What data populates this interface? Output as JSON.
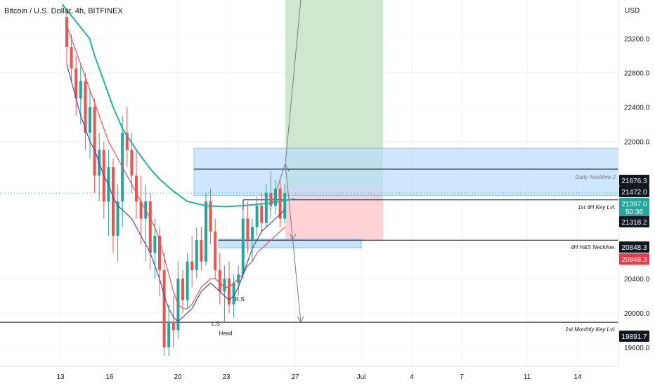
{
  "header": {
    "title": "Bitcoin / U.S. Dollar, 4h, BITFINEX"
  },
  "chart_data": {
    "type": "candlestick",
    "title": "Bitcoin / U.S. Dollar, 4h, BITFINEX",
    "currency": "USD",
    "ylim": [
      19440,
      23550
    ],
    "y_ticks": [
      "23200.0",
      "22800.0",
      "22400.0",
      "22000.0",
      "20400.0",
      "20000.0",
      "19600.0"
    ],
    "y_tick_values": [
      23200,
      22800,
      22400,
      22000,
      20400,
      20000,
      19600
    ],
    "x_ticks": [
      "13",
      "16",
      "20",
      "23",
      "27",
      "Jul",
      "4",
      "7",
      "11",
      "14"
    ],
    "last_price": 21397.0,
    "countdown": "50:36",
    "price_badges": [
      {
        "value": "21676.3",
        "color": "#131722",
        "price": 21676.3
      },
      {
        "value": "21472.0",
        "color": "#131722",
        "price": 21472.0
      },
      {
        "value": "21318.2",
        "color": "#131722",
        "price": 21318.2
      },
      {
        "value": "20848.3",
        "color": "#131722",
        "price": 20848.3
      },
      {
        "value": "20848.3",
        "color": "#f23645",
        "price": 20848.3
      },
      {
        "value": "19891.7",
        "color": "#131722",
        "price": 19891.7
      }
    ],
    "levels": [
      {
        "label": "Daily Neckline 2",
        "price": 21676.3
      },
      {
        "label": "1st 4H Key Lvl.",
        "price": 21318.2
      },
      {
        "label": "4H H&S Neckline.",
        "price": 20848.3
      },
      {
        "label": "1st Monthly Key Lvl.",
        "price": 19891.7
      }
    ],
    "pattern_labels": [
      "L.S",
      "Head",
      "R.S"
    ],
    "colors": {
      "up": "#26a69a",
      "down": "#ef5350",
      "ema_fast": "#3d4db7",
      "ema_mid": "#ef5350",
      "ema_slow": "#20b2aa",
      "target_zone": "#c8e6c9",
      "stop_zone": "#ffcdd2",
      "supply_zone": "#bbdefb"
    },
    "candles": [
      [
        23450,
        23550,
        22900,
        23100
      ],
      [
        23100,
        23250,
        22700,
        22850
      ],
      [
        22850,
        23000,
        22300,
        22500
      ],
      [
        22500,
        22900,
        22200,
        22700
      ],
      [
        22700,
        22800,
        21900,
        22100
      ],
      [
        22100,
        22600,
        21800,
        22400
      ],
      [
        22400,
        22500,
        21400,
        21600
      ],
      [
        21600,
        22100,
        21300,
        21900
      ],
      [
        21900,
        22000,
        21100,
        21300
      ],
      [
        21300,
        21900,
        20900,
        21700
      ],
      [
        21700,
        21800,
        20700,
        20900
      ],
      [
        20900,
        21500,
        20600,
        21300
      ],
      [
        21300,
        22300,
        21000,
        22100
      ],
      [
        22100,
        22400,
        21700,
        21900
      ],
      [
        21900,
        22100,
        21400,
        21600
      ],
      [
        21600,
        21900,
        21100,
        21300
      ],
      [
        21300,
        21600,
        20800,
        21100
      ],
      [
        21100,
        21500,
        20600,
        21300
      ],
      [
        21300,
        21400,
        20500,
        20700
      ],
      [
        20700,
        21100,
        20400,
        20900
      ],
      [
        20900,
        21000,
        20200,
        20500
      ],
      [
        20500,
        20700,
        19500,
        19600
      ],
      [
        19600,
        20100,
        19500,
        19900
      ],
      [
        19900,
        20200,
        19600,
        19800
      ],
      [
        19800,
        20600,
        19700,
        20400
      ],
      [
        20400,
        20500,
        20000,
        20150
      ],
      [
        20150,
        20700,
        20050,
        20600
      ],
      [
        20600,
        20900,
        20300,
        20500
      ],
      [
        20500,
        21000,
        20400,
        20850
      ],
      [
        20850,
        21000,
        20500,
        20600
      ],
      [
        20600,
        21400,
        20550,
        21300
      ],
      [
        21300,
        21450,
        20800,
        20950
      ],
      [
        20950,
        21100,
        20400,
        20500
      ],
      [
        20500,
        20700,
        20100,
        20250
      ],
      [
        20250,
        20550,
        19900,
        20400
      ],
      [
        20400,
        20600,
        20000,
        20100
      ],
      [
        20100,
        20450,
        19950,
        20350
      ],
      [
        20350,
        20550,
        20200,
        20450
      ],
      [
        20450,
        21200,
        20400,
        21100
      ],
      [
        21100,
        21300,
        20700,
        20850
      ],
      [
        20850,
        21100,
        20600,
        21000
      ],
      [
        21000,
        21350,
        20900,
        21250
      ],
      [
        21250,
        21400,
        20950,
        21050
      ],
      [
        21050,
        21500,
        21000,
        21400
      ],
      [
        21400,
        21650,
        21100,
        21250
      ],
      [
        21250,
        21550,
        21150,
        21450
      ],
      [
        21450,
        21550,
        21000,
        21100
      ],
      [
        21100,
        21500,
        21050,
        21397
      ]
    ],
    "ema_fast": [
      22900,
      22700,
      22500,
      22300,
      22150,
      22000,
      21900,
      21750,
      21600,
      21500,
      21350,
      21250,
      21200,
      21150,
      21100,
      21000,
      20900,
      20800,
      20700,
      20550,
      20400,
      20200,
      20050,
      19950,
      19900,
      19950,
      20000,
      20050,
      20150,
      20250,
      20300,
      20350,
      20300,
      20250,
      20200,
      20150,
      20200,
      20300,
      20450,
      20600,
      20750,
      20850,
      20950,
      21000,
      21050,
      21100,
      21150,
      21200
    ],
    "ema_mid": [
      23350,
      23200,
      23050,
      22900,
      22750,
      22600,
      22450,
      22300,
      22150,
      22000,
      21900,
      21800,
      21700,
      21600,
      21500,
      21400,
      21300,
      21200,
      21100,
      21000,
      20850,
      20650,
      20450,
      20250,
      20100,
      20050,
      20050,
      20100,
      20200,
      20300,
      20350,
      20400,
      20400,
      20350,
      20300,
      20300,
      20350,
      20400,
      20450,
      20550,
      20600,
      20700,
      20750,
      20800,
      20850,
      20900,
      20950,
      21000
    ],
    "ema_slow_points": [
      [
        -1,
        23600
      ],
      [
        4.9,
        23200
      ],
      [
        6,
        23000
      ],
      [
        8,
        22700
      ],
      [
        10,
        22400
      ],
      [
        12,
        22150
      ],
      [
        15,
        21900
      ],
      [
        18,
        21680
      ],
      [
        20,
        21560
      ],
      [
        23,
        21420
      ],
      [
        26,
        21300
      ],
      [
        30,
        21250
      ],
      [
        34,
        21240
      ],
      [
        38,
        21250
      ],
      [
        42,
        21270
      ],
      [
        46,
        21300
      ],
      [
        49,
        21330
      ]
    ]
  }
}
